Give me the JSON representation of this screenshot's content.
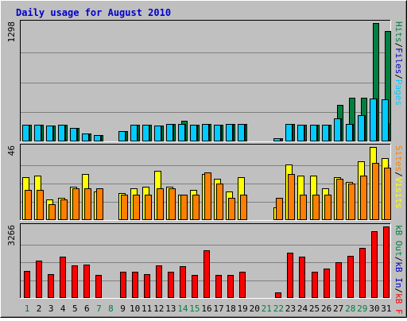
{
  "chart_data": [
    {
      "type": "bar",
      "title": "Daily usage for August 2010",
      "ymax_label": "1298",
      "ylim": [
        0,
        1298
      ],
      "categories": [
        "1",
        "2",
        "3",
        "4",
        "5",
        "6",
        "7",
        "8",
        "9",
        "10",
        "11",
        "12",
        "13",
        "14",
        "15",
        "16",
        "17",
        "18",
        "19",
        "20",
        "21",
        "22",
        "23",
        "24",
        "25",
        "26",
        "27",
        "28",
        "29",
        "30",
        "31"
      ],
      "weekend_days": [
        "1",
        "7",
        "8",
        "14",
        "15",
        "21",
        "22",
        "28",
        "29"
      ],
      "legend": [
        {
          "label": "Pages",
          "color": "#00ccff"
        },
        {
          "label": "/",
          "color": "#000000"
        },
        {
          "label": "Files",
          "color": "#0000cc"
        },
        {
          "label": "/",
          "color": "#000000"
        },
        {
          "label": "Hits",
          "color": "#008040"
        }
      ],
      "series": [
        {
          "name": "Hits",
          "color": "#008040",
          "values": [
            185,
            180,
            175,
            185,
            150,
            90,
            70,
            0,
            110,
            185,
            180,
            175,
            190,
            230,
            185,
            190,
            185,
            190,
            190,
            0,
            0,
            35,
            190,
            185,
            185,
            185,
            400,
            480,
            480,
            1298,
            1210
          ]
        },
        {
          "name": "Files",
          "color": "#0000cc",
          "values": [
            185,
            180,
            175,
            185,
            150,
            90,
            70,
            0,
            110,
            185,
            180,
            175,
            190,
            195,
            185,
            190,
            185,
            190,
            190,
            0,
            0,
            35,
            190,
            185,
            185,
            185,
            250,
            190,
            290,
            470,
            200
          ]
        },
        {
          "name": "Pages",
          "color": "#00ccff",
          "values": [
            185,
            180,
            175,
            185,
            150,
            90,
            70,
            0,
            110,
            185,
            180,
            175,
            190,
            195,
            185,
            190,
            185,
            190,
            190,
            0,
            0,
            35,
            190,
            185,
            185,
            185,
            250,
            190,
            290,
            470,
            460
          ]
        }
      ]
    },
    {
      "type": "bar",
      "ymax_label": "46",
      "ylim": [
        0,
        46
      ],
      "categories": [
        "1",
        "2",
        "3",
        "4",
        "5",
        "6",
        "7",
        "8",
        "9",
        "10",
        "11",
        "12",
        "13",
        "14",
        "15",
        "16",
        "17",
        "18",
        "19",
        "20",
        "21",
        "22",
        "23",
        "24",
        "25",
        "26",
        "27",
        "28",
        "29",
        "30",
        "31"
      ],
      "legend": [
        {
          "label": "Visits",
          "color": "#ffff00"
        },
        {
          "label": "/",
          "color": "#000000"
        },
        {
          "label": "Sites",
          "color": "#ff8000"
        }
      ],
      "series": [
        {
          "name": "Visits",
          "color": "#ffff00",
          "values": [
            27,
            28,
            13,
            14,
            21,
            29,
            18,
            0,
            17,
            20,
            21,
            31,
            21,
            16,
            19,
            29,
            26,
            18,
            27,
            0,
            0,
            8,
            35,
            28,
            28,
            20,
            27,
            24,
            37,
            46,
            39
          ]
        },
        {
          "name": "Sites",
          "color": "#ff8000",
          "values": [
            19,
            19,
            10,
            13,
            20,
            20,
            20,
            0,
            16,
            16,
            16,
            20,
            20,
            16,
            16,
            30,
            23,
            14,
            16,
            0,
            0,
            14,
            29,
            16,
            16,
            16,
            26,
            23,
            28,
            36,
            33
          ]
        }
      ]
    },
    {
      "type": "bar",
      "ymax_label": "3266",
      "ylim": [
        0,
        3266
      ],
      "categories": [
        "1",
        "2",
        "3",
        "4",
        "5",
        "6",
        "7",
        "8",
        "9",
        "10",
        "11",
        "12",
        "13",
        "14",
        "15",
        "16",
        "17",
        "18",
        "19",
        "20",
        "21",
        "22",
        "23",
        "24",
        "25",
        "26",
        "27",
        "28",
        "29",
        "30",
        "31"
      ],
      "legend": [
        {
          "label": "kB F",
          "color": "#ff0000"
        },
        {
          "label": "/",
          "color": "#000000"
        },
        {
          "label": "kB In",
          "color": "#0000cc"
        },
        {
          "label": "/",
          "color": "#000000"
        },
        {
          "label": "kB Out",
          "color": "#008040"
        }
      ],
      "series": [
        {
          "name": "kB F",
          "color": "#ff0000",
          "values": [
            1240,
            1700,
            1080,
            1880,
            1490,
            1540,
            1040,
            0,
            1190,
            1190,
            1080,
            1490,
            1190,
            1440,
            1040,
            2160,
            1070,
            1040,
            1190,
            0,
            0,
            260,
            2070,
            1870,
            1190,
            1330,
            1640,
            1930,
            2280,
            3060,
            3266
          ]
        }
      ]
    }
  ]
}
